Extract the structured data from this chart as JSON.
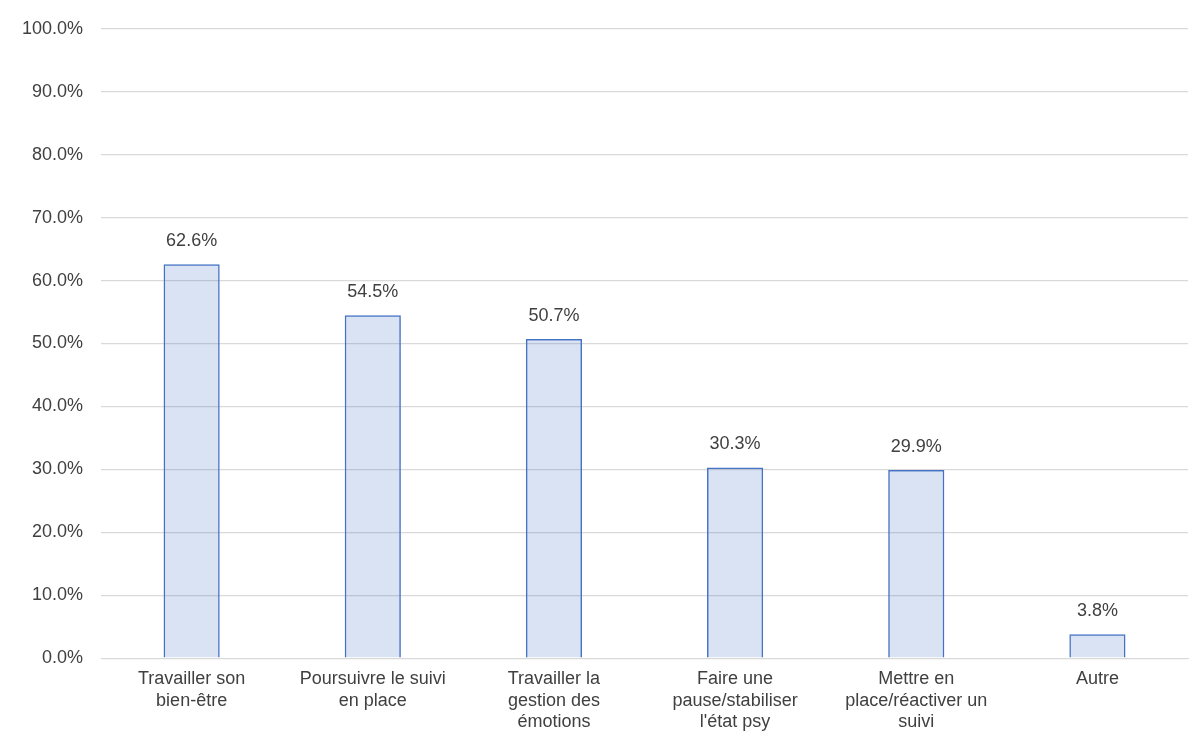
{
  "chart_data": {
    "type": "bar",
    "categories": [
      "Travailler son bien-être",
      "Poursuivre le suivi en place",
      "Travailler la gestion des émotions",
      "Faire une pause/stabiliser l'état psy",
      "Mettre en place/réactiver un suivi",
      "Autre"
    ],
    "series": [
      {
        "color": "#4472c4",
        "values": [
          62.6,
          54.5,
          50.7,
          30.3,
          29.9,
          3.8
        ],
        "value_labels": [
          "62.6%",
          "54.5%",
          "50.7%",
          "30.3%",
          "29.9%",
          "3.8%"
        ]
      }
    ],
    "ylim": [
      0,
      100
    ],
    "yticks": [
      {
        "value": 0,
        "label": "0.0%"
      },
      {
        "value": 10,
        "label": "10.0%"
      },
      {
        "value": 20,
        "label": "20.0%"
      },
      {
        "value": 30,
        "label": "30.0%"
      },
      {
        "value": 40,
        "label": "40.0%"
      },
      {
        "value": 50,
        "label": "50.0%"
      },
      {
        "value": 60,
        "label": "60.0%"
      },
      {
        "value": 70,
        "label": "70.0%"
      },
      {
        "value": 80,
        "label": "80.0%"
      },
      {
        "value": 90,
        "label": "90.0%"
      },
      {
        "value": 100,
        "label": "100.0%"
      }
    ],
    "grid": "y",
    "legend": false
  }
}
